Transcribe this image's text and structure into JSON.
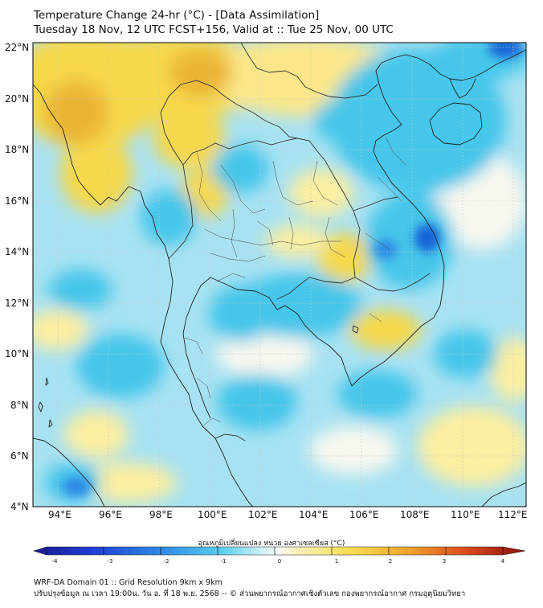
{
  "title": {
    "line1": "Temperature Change 24-hr (°C) - [Data Assimilation]",
    "line2": "Tuesday 18 Nov, 12 UTC FCST+156, Valid at :: Tue 25 Nov, 00 UTC"
  },
  "map": {
    "lon_range": [
      93,
      112.5
    ],
    "lat_range": [
      4,
      22.2
    ],
    "x_ticks": [
      "94°E",
      "96°E",
      "98°E",
      "100°E",
      "102°E",
      "104°E",
      "106°E",
      "108°E",
      "110°E",
      "112°E"
    ],
    "y_ticks": [
      "22°N",
      "20°N",
      "18°N",
      "16°N",
      "14°N",
      "12°N",
      "10°N",
      "8°N",
      "6°N",
      "4°N"
    ],
    "gridlines": true,
    "field_colors": {
      "strong_cool": "#1565d8",
      "cool": "#45c6ea",
      "light_cool": "#a8e2f2",
      "neutral": "#f7f7ef",
      "light_warm": "#fbeea0",
      "warm": "#f6d84b",
      "strong_warm": "#eab534"
    },
    "coastline_color": "#222222"
  },
  "colorbar": {
    "label": "อุณหภูมิเปลี่ยนแปลง หน่วย องศาเซลเซียส (°C)",
    "ticks": [
      "-4",
      "-3",
      "-2",
      "-1",
      "0",
      "1",
      "2",
      "3",
      "4"
    ],
    "range": [
      -4,
      4
    ]
  },
  "footer": {
    "line1": "WRF-DA Domain 01 :: Grid Resolution 9km x 9km",
    "line2": "ปรับปรุงข้อมูล ณ เวลา 19:00น. วัน อ. ที่ 18 พ.ย. 2568 -- © ส่วนพยากรณ์อากาศเชิงตัวเลข กองพยากรณ์อากาศ กรมอุตุนิยมวิทยา"
  }
}
